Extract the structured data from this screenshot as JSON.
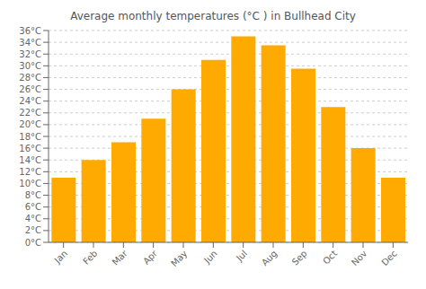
{
  "chart_data": {
    "type": "bar",
    "title": "Average monthly temperatures (°C ) in Bullhead City",
    "categories": [
      "Jan",
      "Feb",
      "Mar",
      "Apr",
      "May",
      "Jun",
      "Jul",
      "Aug",
      "Sep",
      "Oct",
      "Nov",
      "Dec"
    ],
    "values": [
      11,
      14,
      17,
      21,
      26,
      31,
      35,
      33.5,
      29.5,
      23,
      16,
      11
    ],
    "color": "#FFAA00",
    "ylim": [
      0,
      36
    ],
    "yticks": [
      {
        "value": 0,
        "label": "0°C"
      },
      {
        "value": 2,
        "label": "2°C"
      },
      {
        "value": 4,
        "label": "4°C"
      },
      {
        "value": 6,
        "label": "6°C"
      },
      {
        "value": 8,
        "label": "8°C"
      },
      {
        "value": 10,
        "label": "10°C"
      },
      {
        "value": 12,
        "label": "12°C"
      },
      {
        "value": 14,
        "label": "14°C"
      },
      {
        "value": 16,
        "label": "16°C"
      },
      {
        "value": 18,
        "label": "18°C"
      },
      {
        "value": 20,
        "label": "20°C"
      },
      {
        "value": 22,
        "label": "22°C"
      },
      {
        "value": 24,
        "label": "24°C"
      },
      {
        "value": 26,
        "label": "26°C"
      },
      {
        "value": 28,
        "label": "28°C"
      },
      {
        "value": 30,
        "label": "30°C"
      },
      {
        "value": 32,
        "label": "32°C"
      },
      {
        "value": 34,
        "label": "34°C"
      },
      {
        "value": 36,
        "label": "36°C"
      }
    ],
    "grid": true
  }
}
